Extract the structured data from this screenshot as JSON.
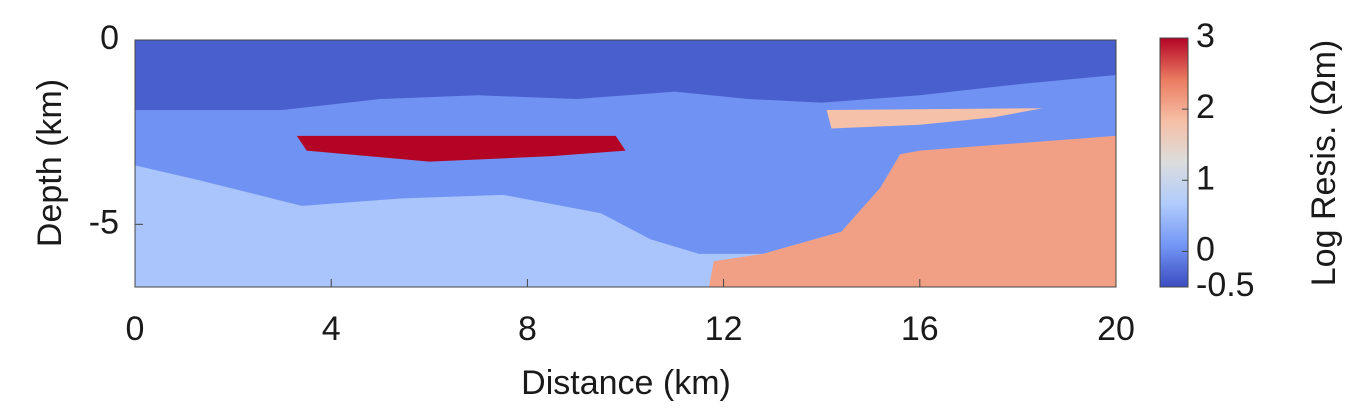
{
  "chart_data": {
    "type": "field",
    "xlabel": "Distance (km)",
    "ylabel": "Depth (km)",
    "colorbar_label": "Log Resis. (Ωm)",
    "xlim": [
      0,
      20
    ],
    "xticks": [
      0,
      4,
      8,
      12,
      16,
      20
    ],
    "ylim": [
      -6.7,
      0
    ],
    "yticks": [
      -5,
      0
    ],
    "clim": [
      -0.5,
      3
    ],
    "cticks": [
      -0.5,
      0,
      1,
      2,
      3
    ],
    "colormap": [
      "#3b4cc0",
      "#7396f5",
      "#b0cbfc",
      "#dcdddd",
      "#f6bfa6",
      "#ea7b60",
      "#b40426"
    ],
    "regions": [
      {
        "value": 0.6,
        "points": [
          [
            0,
            0
          ],
          [
            20,
            0
          ],
          [
            20,
            -6.7
          ],
          [
            0,
            -6.7
          ]
        ]
      },
      {
        "value": 0.05,
        "points": [
          [
            0,
            0
          ],
          [
            20,
            0
          ],
          [
            20,
            -2.6
          ],
          [
            15.6,
            -3.1
          ],
          [
            15.2,
            -4
          ],
          [
            14.4,
            -5.2
          ],
          [
            12.8,
            -5.8
          ],
          [
            11.5,
            -5.8
          ],
          [
            10.5,
            -5.4
          ],
          [
            9.5,
            -4.7
          ],
          [
            7.5,
            -4.2
          ],
          [
            5.4,
            -4.3
          ],
          [
            3.4,
            -4.5
          ],
          [
            1.3,
            -3.8
          ],
          [
            0,
            -3.4
          ]
        ]
      },
      {
        "value": 2.1,
        "points": [
          [
            11.7,
            -6.7
          ],
          [
            20,
            -6.7
          ],
          [
            20,
            -2.6
          ],
          [
            16,
            -3.0
          ],
          [
            15.6,
            -3.1
          ],
          [
            15.2,
            -4
          ],
          [
            14.4,
            -5.2
          ],
          [
            12.8,
            -5.8
          ],
          [
            11.8,
            -6.0
          ]
        ]
      },
      {
        "value": -0.35,
        "points": [
          [
            0,
            0
          ],
          [
            20,
            0
          ],
          [
            20,
            -0.95
          ],
          [
            18,
            -1.2
          ],
          [
            16,
            -1.5
          ],
          [
            14,
            -1.7
          ],
          [
            12.5,
            -1.6
          ],
          [
            11,
            -1.4
          ],
          [
            9,
            -1.6
          ],
          [
            7,
            -1.5
          ],
          [
            5,
            -1.6
          ],
          [
            3,
            -1.9
          ],
          [
            0,
            -1.9
          ]
        ]
      },
      {
        "value": 3,
        "points": [
          [
            3.3,
            -2.6
          ],
          [
            9.8,
            -2.6
          ],
          [
            10,
            -3.0
          ],
          [
            8.5,
            -3.15
          ],
          [
            6,
            -3.3
          ],
          [
            3.5,
            -3.0
          ]
        ]
      },
      {
        "value": 1.8,
        "points": [
          [
            14.1,
            -1.9
          ],
          [
            18.5,
            -1.85
          ],
          [
            17.5,
            -2.1
          ],
          [
            16,
            -2.3
          ],
          [
            14.2,
            -2.4
          ]
        ]
      }
    ]
  }
}
